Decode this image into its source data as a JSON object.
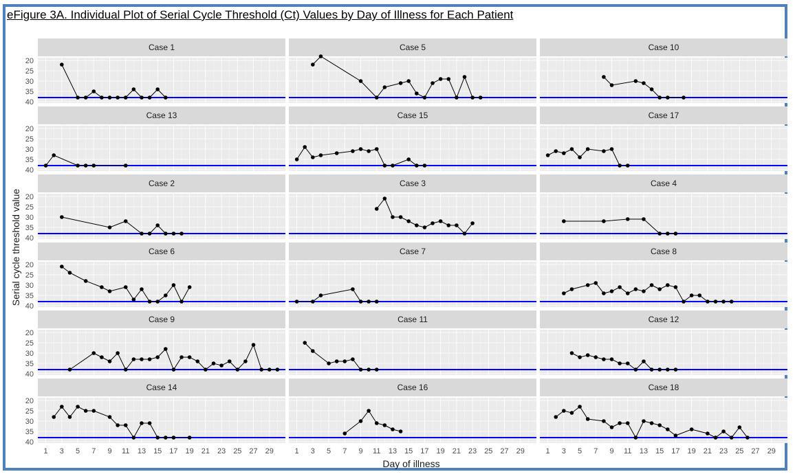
{
  "figure_title": "eFigure 3A. Individual Plot of Serial Cycle Threshold (Ct) Values by Day of Illness for Each Patient",
  "colors": {
    "threshold_line": "#0000ff",
    "panel": "#ebebeb",
    "strip": "#d9d9d9",
    "frame": "#4f81bd"
  },
  "chart_data": {
    "type": "line",
    "xlabel": "Day of illness",
    "ylabel": "Serial cycle threshold value",
    "xlim": [
      0,
      31
    ],
    "ylim": [
      20,
      40
    ],
    "y_reversed": true,
    "x_ticks": [
      1,
      3,
      5,
      7,
      9,
      11,
      13,
      15,
      17,
      19,
      21,
      23,
      25,
      27,
      29
    ],
    "y_ticks": [
      20,
      25,
      30,
      35,
      40
    ],
    "threshold": 38,
    "grid": true,
    "panels": [
      {
        "name": "Case 1",
        "x": [
          3,
          5,
          6,
          7,
          8,
          9,
          10,
          11,
          12,
          13,
          14,
          15,
          16
        ],
        "y": [
          22,
          38,
          38,
          35,
          38,
          38,
          38,
          38,
          34,
          38,
          38,
          34,
          38
        ]
      },
      {
        "name": "Case 5",
        "x": [
          3,
          4,
          9,
          11,
          12,
          14,
          15,
          16,
          17,
          18,
          19,
          20,
          21,
          22,
          23,
          24
        ],
        "y": [
          22,
          18,
          30,
          38,
          33,
          31,
          30,
          36,
          38,
          31,
          29,
          29,
          38,
          28,
          38,
          38
        ]
      },
      {
        "name": "Case 10",
        "x": [
          8,
          9,
          12,
          13,
          14,
          15,
          16,
          18
        ],
        "y": [
          28,
          32,
          30,
          31,
          34,
          38,
          38,
          38
        ]
      },
      {
        "name": "Case 13",
        "x": [
          1,
          2,
          5,
          6,
          7,
          11
        ],
        "y": [
          38,
          33,
          38,
          38,
          38,
          38
        ]
      },
      {
        "name": "Case 15",
        "x": [
          1,
          2,
          3,
          4,
          6,
          8,
          9,
          10,
          11,
          12,
          13,
          15,
          16,
          17
        ],
        "y": [
          35,
          29,
          34,
          33,
          32,
          31,
          30,
          31,
          30,
          38,
          38,
          35,
          38,
          38
        ]
      },
      {
        "name": "Case 17",
        "x": [
          1,
          2,
          3,
          4,
          5,
          6,
          8,
          9,
          10,
          11
        ],
        "y": [
          33,
          31,
          32,
          30,
          34,
          30,
          31,
          30,
          38,
          38
        ]
      },
      {
        "name": "Case 2",
        "x": [
          3,
          9,
          11,
          13,
          14,
          15,
          16,
          17,
          18
        ],
        "y": [
          30,
          35,
          32,
          38,
          38,
          34,
          38,
          38,
          38
        ]
      },
      {
        "name": "Case 3",
        "x": [
          11,
          12,
          13,
          14,
          15,
          16,
          17,
          18,
          19,
          20,
          21,
          22,
          23
        ],
        "y": [
          26,
          21,
          30,
          30,
          32,
          34,
          35,
          33,
          32,
          34,
          34,
          38,
          33
        ]
      },
      {
        "name": "Case 4",
        "x": [
          3,
          8,
          11,
          13,
          15,
          16,
          17
        ],
        "y": [
          32,
          32,
          31,
          31,
          38,
          38,
          38
        ]
      },
      {
        "name": "Case 6",
        "x": [
          3,
          4,
          6,
          8,
          9,
          11,
          12,
          13,
          14,
          15,
          16,
          17,
          18,
          19
        ],
        "y": [
          21,
          24,
          28,
          31,
          33,
          31,
          37,
          32,
          38,
          38,
          35,
          30,
          38,
          31
        ]
      },
      {
        "name": "Case 7",
        "x": [
          1,
          3,
          4,
          8,
          9,
          10,
          11
        ],
        "y": [
          38,
          38,
          35,
          32,
          38,
          38,
          38
        ]
      },
      {
        "name": "Case 8",
        "x": [
          3,
          4,
          6,
          7,
          8,
          9,
          10,
          11,
          12,
          13,
          14,
          15,
          16,
          17,
          18,
          19,
          20,
          21,
          22,
          23,
          24
        ],
        "y": [
          34,
          32,
          30,
          29,
          34,
          33,
          31,
          34,
          32,
          33,
          30,
          32,
          30,
          31,
          38,
          35,
          35,
          38,
          38,
          38,
          38
        ]
      },
      {
        "name": "Case 9",
        "x": [
          4,
          7,
          8,
          9,
          10,
          11,
          12,
          13,
          14,
          15,
          16,
          17,
          18,
          19,
          20,
          21,
          22,
          23,
          24,
          25,
          26,
          27,
          28,
          29,
          30
        ],
        "y": [
          38,
          30,
          32,
          34,
          30,
          38,
          33,
          33,
          33,
          32,
          28,
          38,
          32,
          32,
          34,
          38,
          35,
          36,
          34,
          38,
          34,
          26,
          38,
          38,
          38
        ]
      },
      {
        "name": "Case 11",
        "x": [
          2,
          3,
          5,
          6,
          7,
          8,
          9,
          10,
          11
        ],
        "y": [
          25,
          29,
          35,
          34,
          34,
          33,
          38,
          38,
          38
        ]
      },
      {
        "name": "Case 12",
        "x": [
          4,
          5,
          6,
          7,
          8,
          9,
          10,
          11,
          12,
          13,
          14,
          15,
          16,
          17
        ],
        "y": [
          30,
          32,
          31,
          32,
          33,
          33,
          35,
          35,
          38,
          34,
          38,
          38,
          38,
          38
        ]
      },
      {
        "name": "Case 14",
        "x": [
          2,
          3,
          4,
          5,
          6,
          7,
          9,
          10,
          11,
          12,
          13,
          14,
          15,
          16,
          17,
          19
        ],
        "y": [
          28,
          23,
          28,
          23,
          25,
          25,
          28,
          32,
          32,
          38,
          31,
          31,
          38,
          38,
          38,
          38
        ]
      },
      {
        "name": "Case 16",
        "x": [
          7,
          9,
          10,
          11,
          12,
          13,
          14
        ],
        "y": [
          36,
          30,
          25,
          31,
          32,
          34,
          35
        ]
      },
      {
        "name": "Case 18",
        "x": [
          2,
          3,
          4,
          5,
          6,
          8,
          9,
          10,
          11,
          12,
          13,
          14,
          15,
          16,
          17,
          19,
          21,
          22,
          23,
          24,
          25,
          26
        ],
        "y": [
          28,
          25,
          26,
          23,
          29,
          30,
          33,
          31,
          31,
          38,
          30,
          31,
          32,
          34,
          37,
          34,
          36,
          38,
          35,
          38,
          33,
          38
        ]
      }
    ]
  }
}
